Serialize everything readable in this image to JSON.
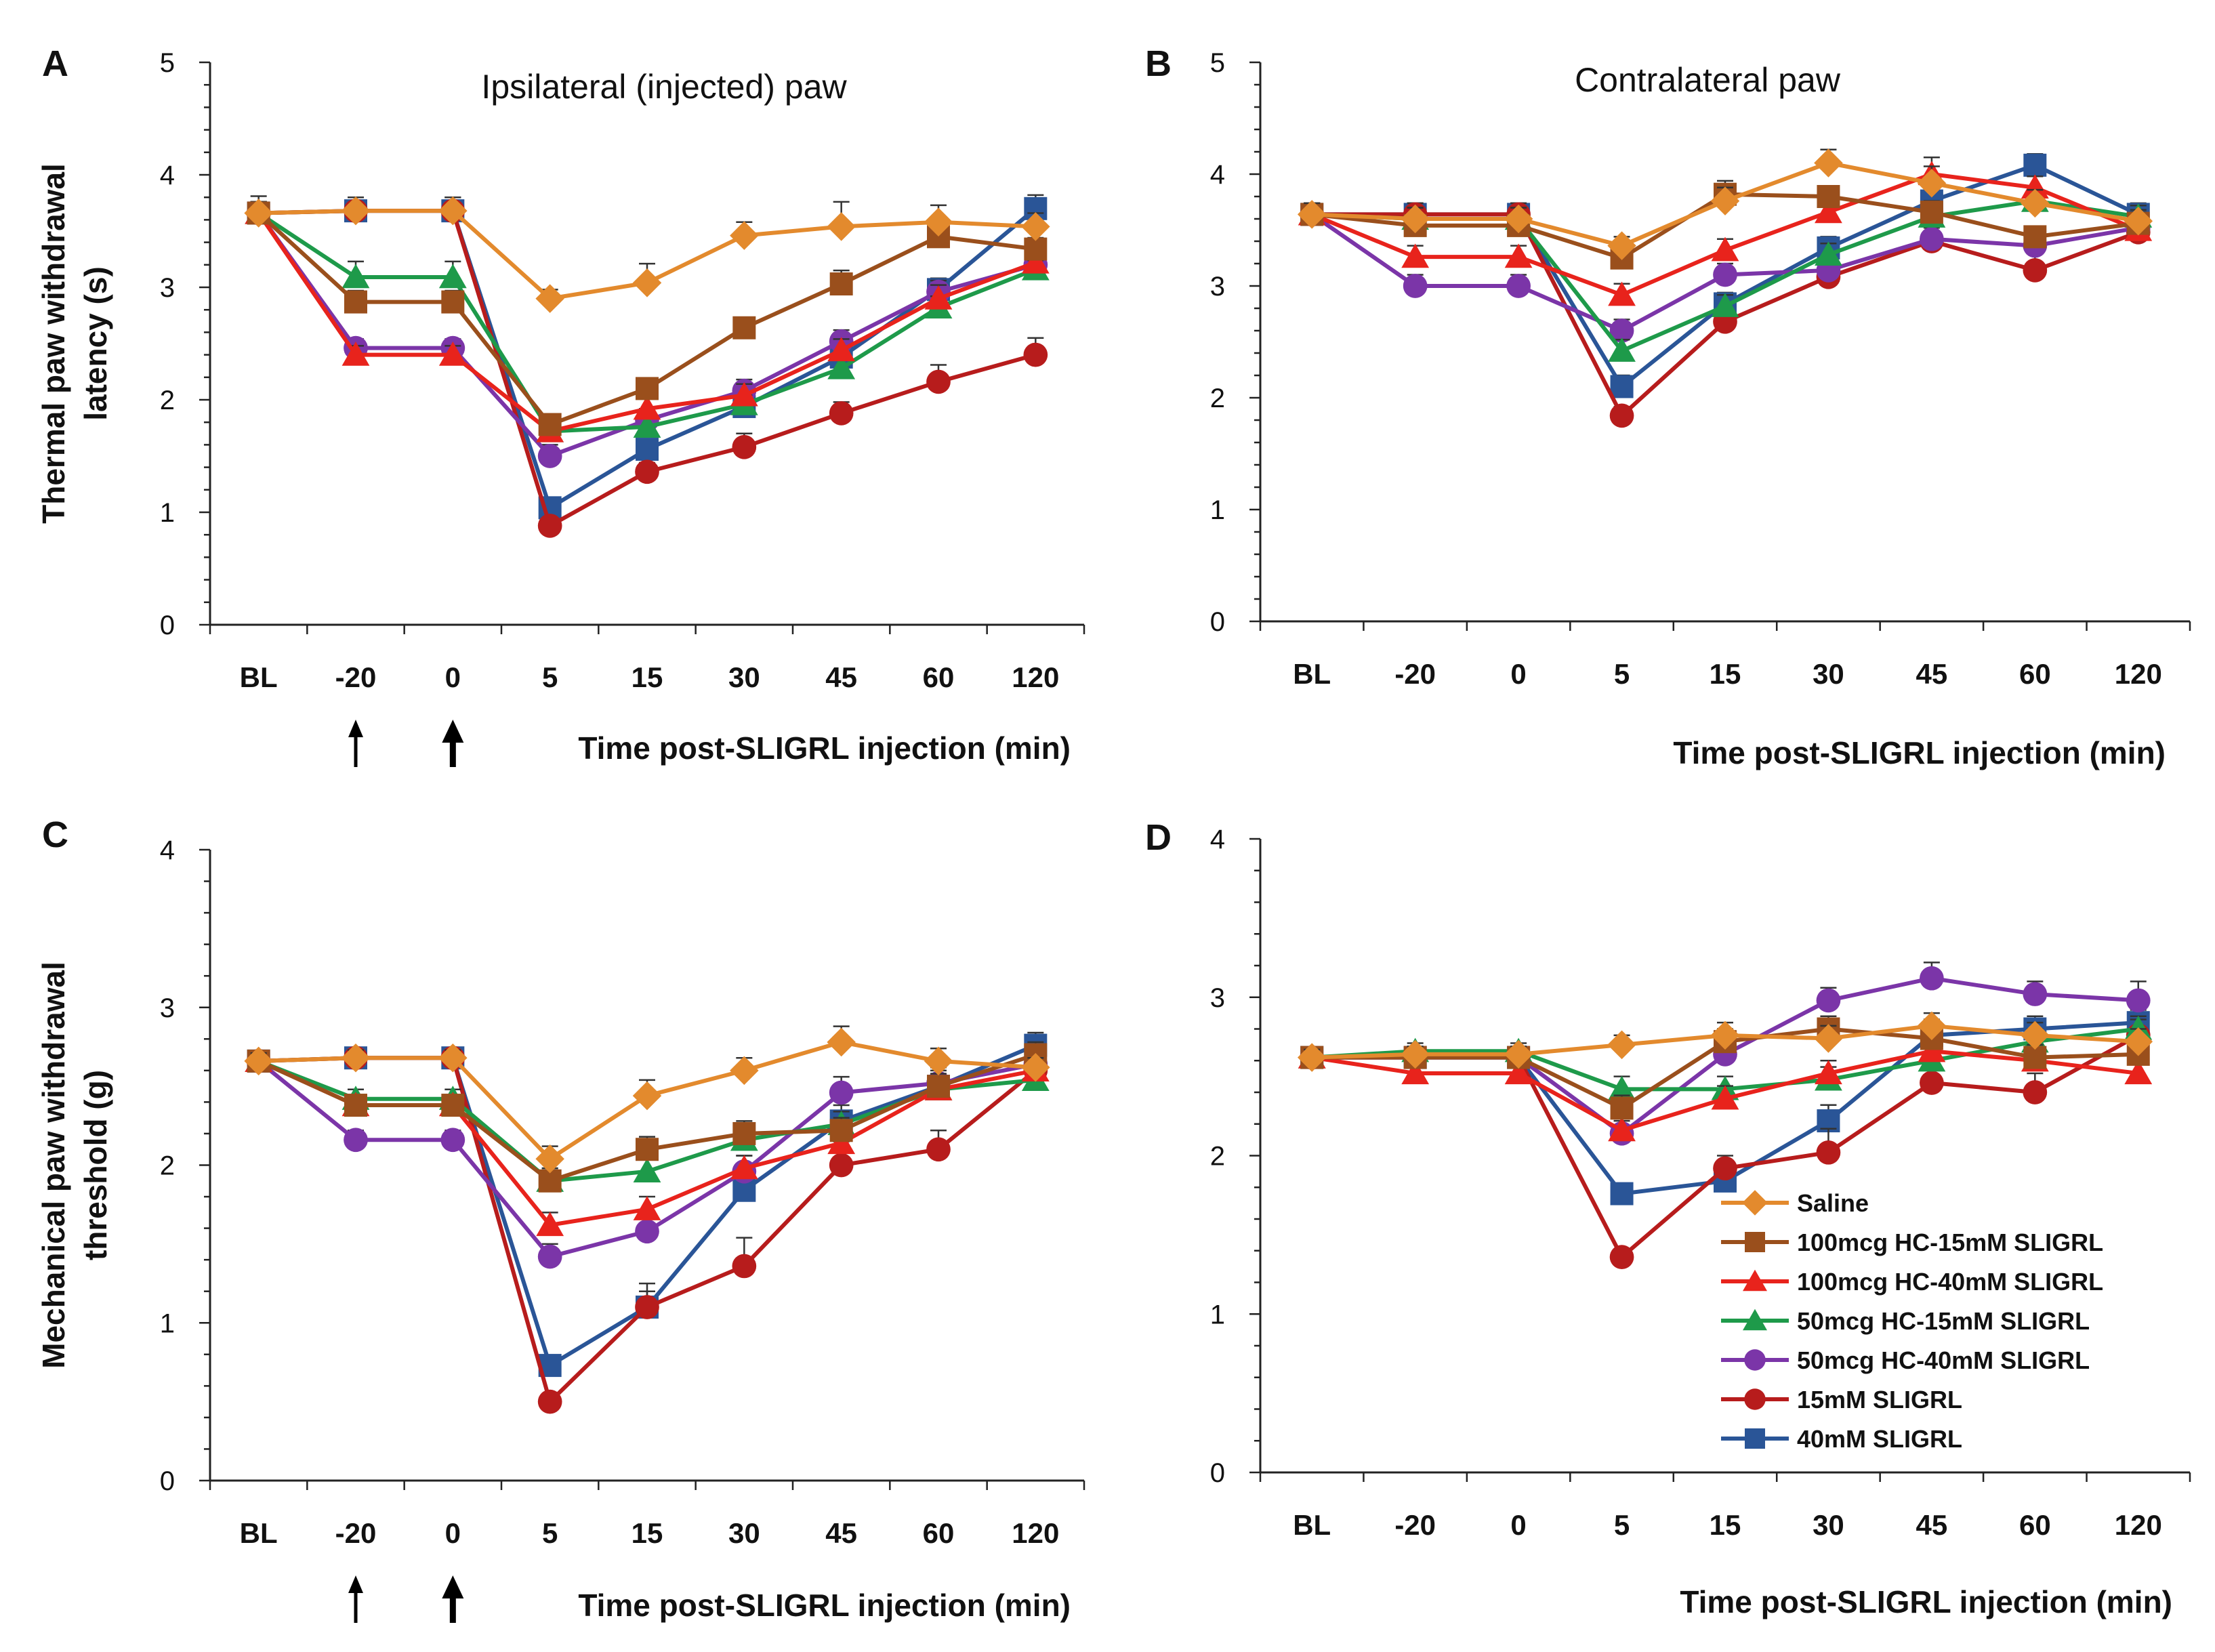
{
  "categories": [
    "BL",
    "-20",
    "0",
    "5",
    "15",
    "30",
    "45",
    "60",
    "120"
  ],
  "xlabel": "Time post-SLIGRL injection (min)",
  "legend": [
    {
      "name": "Saline",
      "color": "#E38A2D",
      "marker": "diamond"
    },
    {
      "name": "100mcg HC-15mM SLIGRL",
      "color": "#9A4F1C",
      "marker": "square"
    },
    {
      "name": "100mcg HC-40mM SLIGRL",
      "color": "#E8231C",
      "marker": "triangle"
    },
    {
      "name": "50mcg HC-15mM SLIGRL",
      "color": "#1E9A4A",
      "marker": "triangle"
    },
    {
      "name": "50mcg HC-40mM SLIGRL",
      "color": "#7B35A8",
      "marker": "circle"
    },
    {
      "name": "15mM SLIGRL",
      "color": "#B71C1C",
      "marker": "circle"
    },
    {
      "name": "40mM SLIGRL",
      "color": "#2A5597",
      "marker": "square"
    }
  ],
  "chart_data": [
    {
      "panel": "A",
      "type": "line",
      "title": "Ipsilateral (injected) paw",
      "ylabel_lines": [
        "Thermal paw withdrawal",
        "latency (s)"
      ],
      "ylim": [
        0,
        5
      ],
      "yticks": [
        0,
        1,
        2,
        3,
        4,
        5
      ],
      "injection_arrows": [
        "-20",
        "0"
      ],
      "series": [
        {
          "name": "Saline",
          "values": [
            3.66,
            3.68,
            3.68,
            2.9,
            3.04,
            3.46,
            3.54,
            3.58,
            3.54
          ],
          "errors": [
            0.15,
            0.12,
            0.12,
            0.08,
            0.17,
            0.12,
            0.22,
            0.15,
            0.12
          ]
        },
        {
          "name": "100mcg HC-15mM SLIGRL",
          "values": [
            3.66,
            2.87,
            2.87,
            1.78,
            2.1,
            2.64,
            3.03,
            3.45,
            3.34
          ],
          "errors": [
            0.1,
            0.1,
            0.1,
            0.08,
            0.08,
            0.06,
            0.12,
            0.08,
            0.1
          ]
        },
        {
          "name": "100mcg HC-40mM SLIGRL",
          "values": [
            3.66,
            2.4,
            2.4,
            1.72,
            1.92,
            2.04,
            2.44,
            2.9,
            3.22
          ],
          "errors": [
            0.1,
            0.08,
            0.08,
            0.1,
            0.1,
            0.1,
            0.1,
            0.12,
            0.1
          ]
        },
        {
          "name": "50mcg HC-15mM SLIGRL",
          "values": [
            3.66,
            3.09,
            3.09,
            1.72,
            1.76,
            1.96,
            2.28,
            2.82,
            3.16
          ],
          "errors": [
            0.1,
            0.14,
            0.14,
            0.1,
            0.08,
            0.08,
            0.08,
            0.1,
            0.08
          ]
        },
        {
          "name": "50mcg HC-40mM SLIGRL",
          "values": [
            3.66,
            2.46,
            2.46,
            1.5,
            1.82,
            2.08,
            2.52,
            2.96,
            3.2
          ],
          "errors": [
            0.1,
            0.08,
            0.08,
            0.1,
            0.1,
            0.1,
            0.1,
            0.1,
            0.1
          ]
        },
        {
          "name": "15mM SLIGRL",
          "values": [
            3.66,
            3.68,
            3.68,
            0.88,
            1.36,
            1.58,
            1.88,
            2.16,
            2.4
          ],
          "errors": [
            0.1,
            0.12,
            0.12,
            0.05,
            0.08,
            0.12,
            0.1,
            0.15,
            0.15
          ]
        },
        {
          "name": "40mM SLIGRL",
          "values": [
            3.66,
            3.68,
            3.68,
            1.04,
            1.56,
            1.94,
            2.38,
            2.98,
            3.7
          ],
          "errors": [
            0.1,
            0.12,
            0.12,
            0.08,
            0.08,
            0.1,
            0.1,
            0.1,
            0.12
          ]
        }
      ]
    },
    {
      "panel": "B",
      "type": "line",
      "title": "Contralateral paw",
      "ylabel_lines": [],
      "ylim": [
        0,
        5
      ],
      "yticks": [
        0,
        1,
        2,
        3,
        4,
        5
      ],
      "injection_arrows": [],
      "series": [
        {
          "name": "Saline",
          "values": [
            3.64,
            3.6,
            3.6,
            3.36,
            3.76,
            4.1,
            3.92,
            3.74,
            3.58
          ],
          "errors": [
            0.1,
            0.1,
            0.1,
            0.08,
            0.12,
            0.12,
            0.15,
            0.12,
            0.1
          ]
        },
        {
          "name": "100mcg HC-15mM SLIGRL",
          "values": [
            3.64,
            3.54,
            3.54,
            3.25,
            3.82,
            3.8,
            3.66,
            3.44,
            3.56
          ],
          "errors": [
            0.1,
            0.1,
            0.1,
            0.1,
            0.12,
            0.08,
            0.1,
            0.08,
            0.1
          ]
        },
        {
          "name": "100mcg HC-40mM SLIGRL",
          "values": [
            3.64,
            3.26,
            3.26,
            2.92,
            3.32,
            3.66,
            4.0,
            3.88,
            3.5
          ],
          "errors": [
            0.1,
            0.1,
            0.1,
            0.1,
            0.1,
            0.1,
            0.15,
            0.1,
            0.1
          ]
        },
        {
          "name": "50mcg HC-15mM SLIGRL",
          "values": [
            3.64,
            3.6,
            3.6,
            2.42,
            2.82,
            3.28,
            3.62,
            3.76,
            3.62
          ],
          "errors": [
            0.1,
            0.1,
            0.1,
            0.1,
            0.1,
            0.1,
            0.1,
            0.1,
            0.1
          ]
        },
        {
          "name": "50mcg HC-40mM SLIGRL",
          "values": [
            3.64,
            3.0,
            3.0,
            2.6,
            3.1,
            3.14,
            3.42,
            3.36,
            3.52
          ],
          "errors": [
            0.1,
            0.1,
            0.1,
            0.1,
            0.1,
            0.1,
            0.1,
            0.1,
            0.1
          ]
        },
        {
          "name": "15mM SLIGRL",
          "values": [
            3.64,
            3.64,
            3.64,
            1.84,
            2.68,
            3.08,
            3.4,
            3.14,
            3.48
          ],
          "errors": [
            0.1,
            0.1,
            0.1,
            0.08,
            0.1,
            0.1,
            0.15,
            0.15,
            0.12
          ]
        },
        {
          "name": "40mM SLIGRL",
          "values": [
            3.64,
            3.64,
            3.64,
            2.1,
            2.84,
            3.34,
            3.76,
            4.08,
            3.64
          ],
          "errors": [
            0.1,
            0.1,
            0.1,
            0.1,
            0.1,
            0.1,
            0.12,
            0.1,
            0.1
          ]
        }
      ]
    },
    {
      "panel": "C",
      "type": "line",
      "title": "",
      "ylabel_lines": [
        "Mechanical paw withdrawal",
        "threshold (g)"
      ],
      "ylim": [
        0,
        4
      ],
      "yticks": [
        0,
        1,
        2,
        3,
        4
      ],
      "injection_arrows": [
        "-20",
        "0"
      ],
      "series": [
        {
          "name": "Saline",
          "values": [
            2.66,
            2.68,
            2.68,
            2.04,
            2.44,
            2.6,
            2.78,
            2.66,
            2.62
          ],
          "errors": [
            0.05,
            0.05,
            0.05,
            0.08,
            0.1,
            0.08,
            0.1,
            0.08,
            0.06
          ]
        },
        {
          "name": "100mcg HC-15mM SLIGRL",
          "values": [
            2.66,
            2.38,
            2.38,
            1.9,
            2.1,
            2.2,
            2.22,
            2.5,
            2.7
          ],
          "errors": [
            0.05,
            0.06,
            0.06,
            0.08,
            0.08,
            0.08,
            0.08,
            0.08,
            0.08
          ]
        },
        {
          "name": "100mcg HC-40mM SLIGRL",
          "values": [
            2.66,
            2.38,
            2.38,
            1.62,
            1.72,
            1.98,
            2.14,
            2.48,
            2.6
          ],
          "errors": [
            0.05,
            0.06,
            0.06,
            0.08,
            0.08,
            0.08,
            0.1,
            0.08,
            0.08
          ]
        },
        {
          "name": "50mcg HC-15mM SLIGRL",
          "values": [
            2.66,
            2.42,
            2.42,
            1.9,
            1.96,
            2.16,
            2.26,
            2.48,
            2.54
          ],
          "errors": [
            0.05,
            0.06,
            0.06,
            0.08,
            0.08,
            0.08,
            0.08,
            0.08,
            0.08
          ]
        },
        {
          "name": "50mcg HC-40mM SLIGRL",
          "values": [
            2.66,
            2.16,
            2.16,
            1.42,
            1.58,
            1.96,
            2.46,
            2.52,
            2.64
          ],
          "errors": [
            0.05,
            0.06,
            0.06,
            0.08,
            0.08,
            0.1,
            0.1,
            0.1,
            0.08
          ]
        },
        {
          "name": "15mM SLIGRL",
          "values": [
            2.66,
            2.68,
            2.68,
            0.5,
            1.1,
            1.36,
            2.0,
            2.1,
            2.6
          ],
          "errors": [
            0.05,
            0.05,
            0.05,
            0.05,
            0.15,
            0.18,
            0.15,
            0.12,
            0.1
          ]
        },
        {
          "name": "40mM SLIGRL",
          "values": [
            2.66,
            2.68,
            2.68,
            0.73,
            1.1,
            1.84,
            2.28,
            2.5,
            2.76
          ],
          "errors": [
            0.05,
            0.05,
            0.05,
            0.05,
            0.1,
            0.15,
            0.1,
            0.1,
            0.08
          ]
        }
      ]
    },
    {
      "panel": "D",
      "type": "line",
      "title": "",
      "ylabel_lines": [],
      "ylim": [
        0,
        4
      ],
      "yticks": [
        0,
        1,
        2,
        3,
        4
      ],
      "injection_arrows": [],
      "legend_position": "bottom-right",
      "series": [
        {
          "name": "Saline",
          "values": [
            2.62,
            2.64,
            2.64,
            2.7,
            2.76,
            2.74,
            2.82,
            2.76,
            2.72
          ],
          "errors": [
            0.05,
            0.05,
            0.05,
            0.06,
            0.08,
            0.08,
            0.08,
            0.08,
            0.08
          ]
        },
        {
          "name": "100mcg HC-15mM SLIGRL",
          "values": [
            2.62,
            2.62,
            2.62,
            2.3,
            2.72,
            2.8,
            2.74,
            2.62,
            2.64
          ],
          "errors": [
            0.05,
            0.05,
            0.05,
            0.08,
            0.08,
            0.08,
            0.08,
            0.08,
            0.08
          ]
        },
        {
          "name": "100mcg HC-40mM SLIGRL",
          "values": [
            2.62,
            2.52,
            2.52,
            2.16,
            2.36,
            2.52,
            2.66,
            2.6,
            2.52
          ],
          "errors": [
            0.05,
            0.05,
            0.05,
            0.08,
            0.08,
            0.08,
            0.08,
            0.08,
            0.08
          ]
        },
        {
          "name": "50mcg HC-15mM SLIGRL",
          "values": [
            2.62,
            2.66,
            2.66,
            2.42,
            2.42,
            2.48,
            2.6,
            2.72,
            2.8
          ],
          "errors": [
            0.05,
            0.05,
            0.05,
            0.08,
            0.08,
            0.08,
            0.08,
            0.08,
            0.08
          ]
        },
        {
          "name": "50mcg HC-40mM SLIGRL",
          "values": [
            2.62,
            2.62,
            2.62,
            2.14,
            2.64,
            2.98,
            3.12,
            3.02,
            2.98
          ],
          "errors": [
            0.05,
            0.05,
            0.05,
            0.08,
            0.08,
            0.08,
            0.1,
            0.08,
            0.12
          ]
        },
        {
          "name": "15mM SLIGRL",
          "values": [
            2.62,
            2.62,
            2.62,
            1.36,
            1.92,
            2.02,
            2.46,
            2.4,
            2.76
          ],
          "errors": [
            0.05,
            0.05,
            0.05,
            0.05,
            0.08,
            0.15,
            0.15,
            0.12,
            0.1
          ]
        },
        {
          "name": "40mM SLIGRL",
          "values": [
            2.62,
            2.62,
            2.62,
            1.76,
            1.84,
            2.22,
            2.76,
            2.8,
            2.84
          ],
          "errors": [
            0.05,
            0.05,
            0.05,
            0.06,
            0.08,
            0.1,
            0.1,
            0.08,
            0.08
          ]
        }
      ]
    }
  ]
}
